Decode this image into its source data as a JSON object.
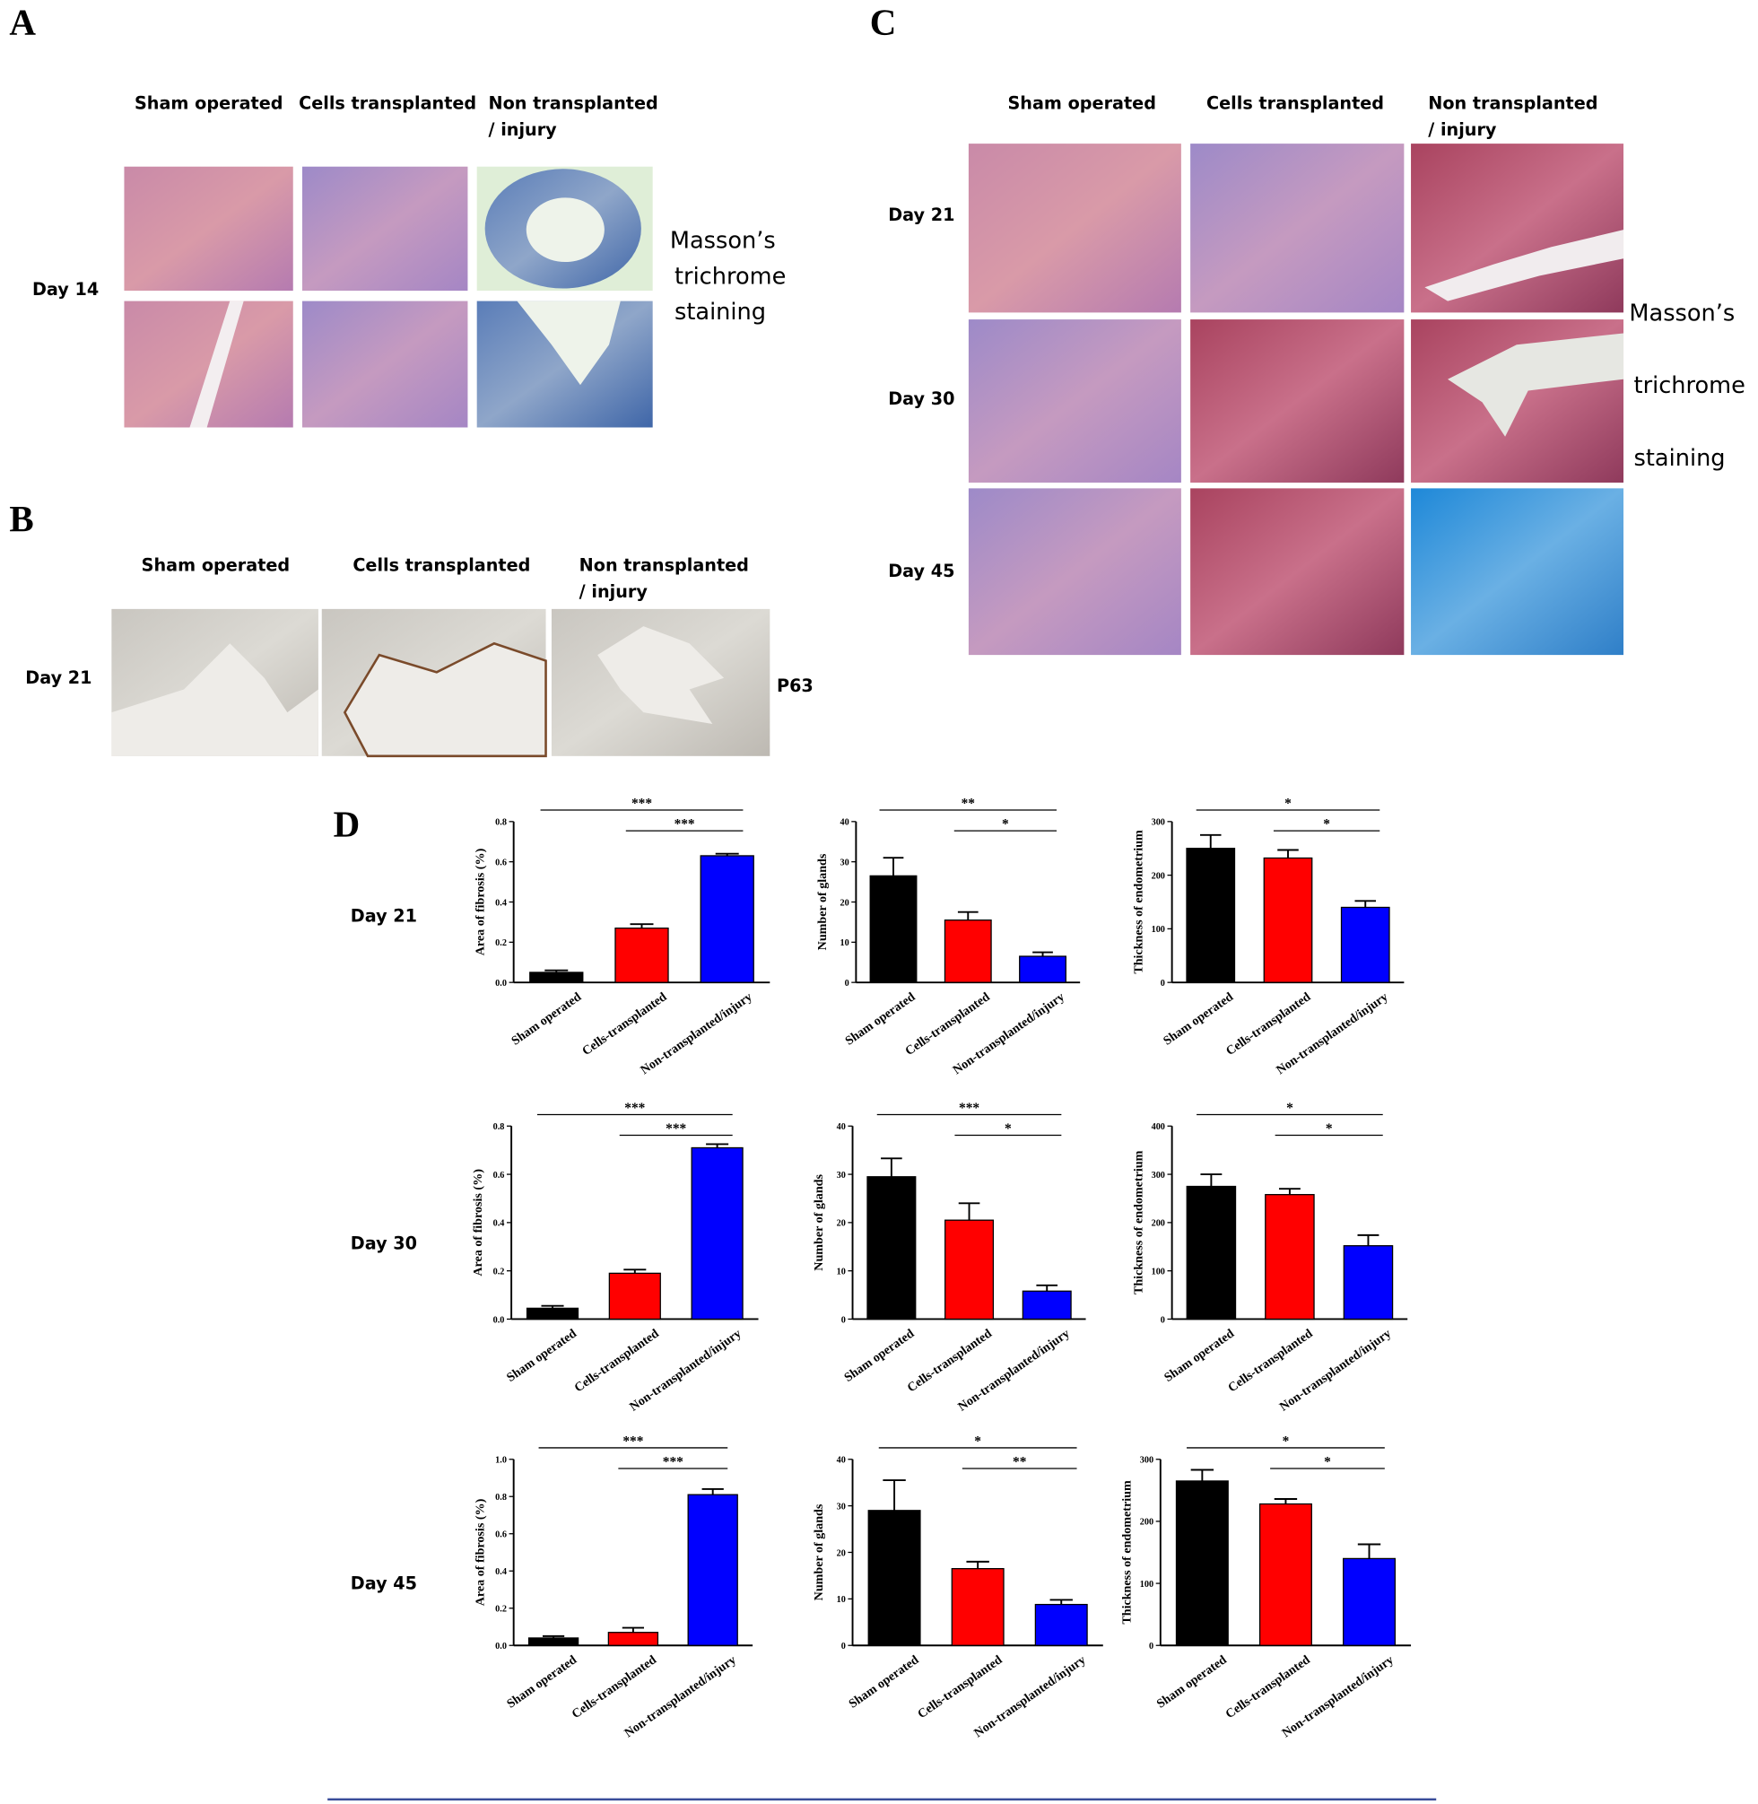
{
  "panels": {
    "a": {
      "label": "A",
      "columns": [
        [
          "Sham operated"
        ],
        [
          "Cells transplanted"
        ],
        [
          "Non transplanted",
          "/ injury"
        ]
      ],
      "rows": [
        "Day 14"
      ],
      "stain": [
        "Masson’s",
        "trichrome",
        "staining"
      ]
    },
    "b": {
      "label": "B",
      "columns": [
        [
          "Sham operated"
        ],
        [
          "Cells transplanted"
        ],
        [
          "Non transplanted",
          "/ injury"
        ]
      ],
      "rows": [
        "Day 21"
      ],
      "stain": [
        "P63"
      ]
    },
    "c": {
      "label": "C",
      "columns": [
        [
          "Sham operated"
        ],
        [
          "Cells transplanted"
        ],
        [
          "Non transplanted",
          "/ injury"
        ]
      ],
      "rows": [
        "Day 21",
        "Day 30",
        "Day 45"
      ],
      "stain": [
        "Masson’s",
        "trichrome",
        "staining"
      ]
    },
    "d": {
      "label": "D",
      "rows": [
        "Day 21",
        "Day 30",
        "Day 45"
      ]
    }
  },
  "chart_data": [
    {
      "type": "bar",
      "y_label": "Area of fibrosis (%)",
      "categories": [
        "Sham operated",
        "Cells-transplanted",
        "Non-transplanted/injury"
      ],
      "values": [
        0.05,
        0.27,
        0.63
      ],
      "errors": [
        0.01,
        0.02,
        0.01
      ],
      "colors": [
        "#000000",
        "#ff0000",
        "#0000ff"
      ],
      "ylim": [
        0,
        0.8
      ],
      "yticks": [
        {
          "value": 0,
          "label": "0.0"
        },
        0.2,
        0.4,
        0.6,
        0.8
      ],
      "annotations": [
        "***",
        "***"
      ]
    },
    {
      "type": "bar",
      "y_label": "Number of glands",
      "categories": [
        "Sham operated",
        "Cells-transplanted",
        "Non-transplanted/injury"
      ],
      "values": [
        26.5,
        15.5,
        6.5
      ],
      "errors": [
        4.5,
        2,
        1
      ],
      "colors": [
        "#000000",
        "#ff0000",
        "#0000ff"
      ],
      "ylim": [
        0,
        40
      ],
      "yticks": [
        0,
        10,
        20,
        30,
        40
      ],
      "annotations": [
        "**",
        "*"
      ]
    },
    {
      "type": "bar",
      "y_label": "Thickness of endometrium",
      "categories": [
        "Sham operated",
        "Cells-transplanted",
        "Non-transplanted/injury"
      ],
      "values": [
        250,
        232,
        140
      ],
      "errors": [
        25,
        15,
        12
      ],
      "colors": [
        "#000000",
        "#ff0000",
        "#0000ff"
      ],
      "ylim": [
        0,
        300
      ],
      "yticks": [
        0,
        100,
        200,
        300
      ],
      "annotations": [
        "*",
        "*"
      ]
    },
    {
      "type": "bar",
      "y_label": "Area of fibrosis (%)",
      "categories": [
        "Sham operated",
        "Cells-transplanted",
        "Non-transplanted/injury"
      ],
      "values": [
        0.045,
        0.19,
        0.71
      ],
      "errors": [
        0.01,
        0.015,
        0.015
      ],
      "colors": [
        "#000000",
        "#ff0000",
        "#0000ff"
      ],
      "ylim": [
        0,
        0.8
      ],
      "yticks": [
        {
          "value": 0,
          "label": "0.0"
        },
        0.2,
        0.4,
        0.6,
        0.8
      ],
      "annotations": [
        "***",
        "***"
      ]
    },
    {
      "type": "bar",
      "y_label": "Number of glands",
      "categories": [
        "Sham operated",
        "Cells-transplanted",
        "Non-transplanted/injury"
      ],
      "values": [
        29.5,
        20.5,
        5.8
      ],
      "errors": [
        3.8,
        3.5,
        1.2
      ],
      "colors": [
        "#000000",
        "#ff0000",
        "#0000ff"
      ],
      "ylim": [
        0,
        40
      ],
      "yticks": [
        0,
        10,
        20,
        30,
        40
      ],
      "annotations": [
        "***",
        "*"
      ]
    },
    {
      "type": "bar",
      "y_label": "Thickness of endometrium",
      "categories": [
        "Sham operated",
        "Cells-transplanted",
        "Non-transplanted/injury"
      ],
      "values": [
        275,
        258,
        152
      ],
      "errors": [
        25,
        12,
        22
      ],
      "colors": [
        "#000000",
        "#ff0000",
        "#0000ff"
      ],
      "ylim": [
        0,
        400
      ],
      "yticks": [
        0,
        100,
        200,
        300,
        400
      ],
      "annotations": [
        "*",
        "*"
      ]
    },
    {
      "type": "bar",
      "y_label": "Area of fibrosis (%)",
      "categories": [
        "Sham operated",
        "Cells-transplanted",
        "Non-transplanted/injury"
      ],
      "values": [
        0.04,
        0.07,
        0.81
      ],
      "errors": [
        0.01,
        0.025,
        0.03
      ],
      "colors": [
        "#000000",
        "#ff0000",
        "#0000ff"
      ],
      "ylim": [
        0,
        1.0
      ],
      "yticks": [
        {
          "value": 0,
          "label": "0.0"
        },
        0.2,
        0.4,
        0.6,
        0.8,
        {
          "value": 1.0,
          "label": "1.0"
        }
      ],
      "annotations": [
        "***",
        "***"
      ]
    },
    {
      "type": "bar",
      "y_label": "Number of glands",
      "categories": [
        "Sham operated",
        "Cells-transplanted",
        "Non-transplanted/injury"
      ],
      "values": [
        29,
        16.5,
        8.8
      ],
      "errors": [
        6.5,
        1.5,
        1
      ],
      "colors": [
        "#000000",
        "#ff0000",
        "#0000ff"
      ],
      "ylim": [
        0,
        40
      ],
      "yticks": [
        0,
        10,
        20,
        30,
        40
      ],
      "annotations": [
        "*",
        "**"
      ]
    },
    {
      "type": "bar",
      "y_label": "Thickness of endometrium",
      "categories": [
        "Sham operated",
        "Cells-transplanted",
        "Non-transplanted/injury"
      ],
      "values": [
        265,
        228,
        140
      ],
      "errors": [
        18,
        8,
        23
      ],
      "colors": [
        "#000000",
        "#ff0000",
        "#0000ff"
      ],
      "ylim": [
        0,
        300
      ],
      "yticks": [
        0,
        100,
        200,
        300
      ],
      "annotations": [
        "*",
        "*"
      ]
    }
  ]
}
